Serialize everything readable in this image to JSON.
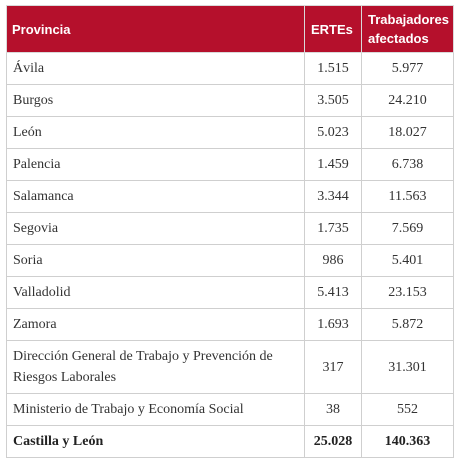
{
  "table": {
    "headers": {
      "provincia": "Provincia",
      "ertes": "ERTEs",
      "trabajadores": "Trabajadores afectados"
    },
    "rows": [
      {
        "provincia": "Ávila",
        "ertes": "1.515",
        "trabajadores": "5.977"
      },
      {
        "provincia": "Burgos",
        "ertes": "3.505",
        "trabajadores": "24.210"
      },
      {
        "provincia": "León",
        "ertes": "5.023",
        "trabajadores": "18.027"
      },
      {
        "provincia": "Palencia",
        "ertes": "1.459",
        "trabajadores": "6.738"
      },
      {
        "provincia": "Salamanca",
        "ertes": "3.344",
        "trabajadores": "11.563"
      },
      {
        "provincia": "Segovia",
        "ertes": "1.735",
        "trabajadores": "7.569"
      },
      {
        "provincia": "Soria",
        "ertes": "986",
        "trabajadores": "5.401"
      },
      {
        "provincia": "Valladolid",
        "ertes": "5.413",
        "trabajadores": "23.153"
      },
      {
        "provincia": "Zamora",
        "ertes": "1.693",
        "trabajadores": "5.872"
      },
      {
        "provincia": "Dirección General de Trabajo y Prevención de Riesgos Laborales",
        "ertes": "317",
        "trabajadores": "31.301"
      },
      {
        "provincia": "Ministerio de Trabajo y Economía Social",
        "ertes": "38",
        "trabajadores": "552"
      }
    ],
    "total": {
      "provincia": "Castilla y León",
      "ertes": "25.028",
      "trabajadores": "140.363"
    }
  },
  "colors": {
    "header_background": "#b5102c",
    "header_text": "#ffffff",
    "border": "#cfcfcf"
  }
}
